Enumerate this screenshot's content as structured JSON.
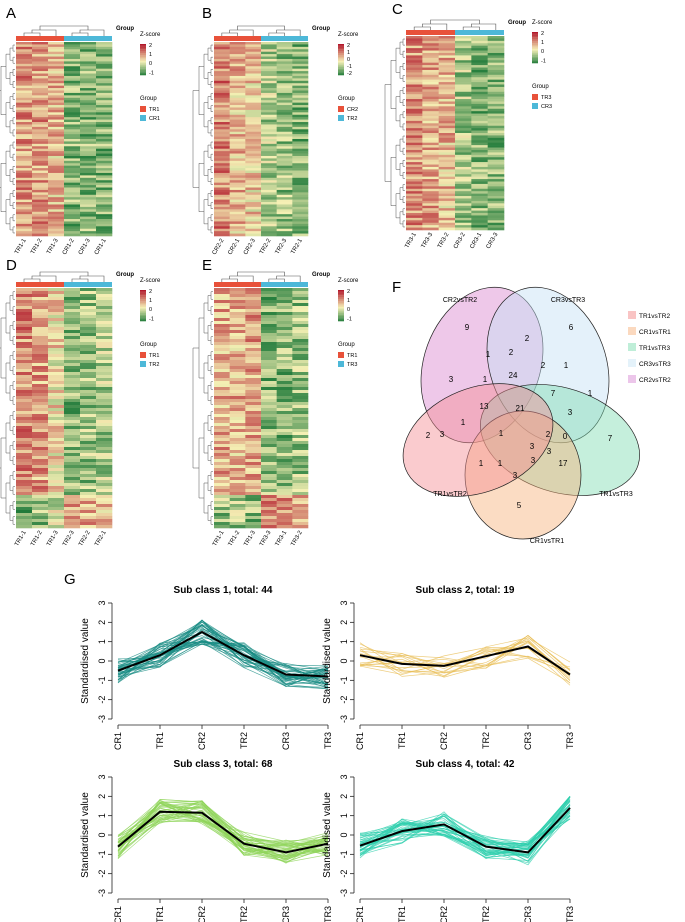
{
  "panels": {
    "A": {
      "letter": "A",
      "groups": [
        "TR1",
        "CR1"
      ],
      "cols": [
        "TR1-1",
        "TR1-2",
        "TR1-3",
        "CR1-2",
        "CR1-3",
        "CR1-1"
      ],
      "scale": [
        "2",
        "1",
        "0",
        "-1"
      ]
    },
    "B": {
      "letter": "B",
      "groups": [
        "CR2",
        "TR2"
      ],
      "cols": [
        "CR2-2",
        "CR2-1",
        "CR2-3",
        "TR2-2",
        "TR2-3",
        "TR2-1"
      ],
      "scale": [
        "2",
        "1",
        "0",
        "-1",
        "-2"
      ]
    },
    "C": {
      "letter": "C",
      "groups": [
        "TR3",
        "CR3"
      ],
      "cols": [
        "TR3-1",
        "TR3-3",
        "TR3-2",
        "CR3-2",
        "CR3-1",
        "CR3-3"
      ],
      "scale": [
        "2",
        "1",
        "0",
        "-1"
      ]
    },
    "D": {
      "letter": "D",
      "groups": [
        "TR1",
        "TR2"
      ],
      "cols": [
        "TR1-1",
        "TR1-2",
        "TR1-3",
        "TR2-3",
        "TR2-2",
        "TR2-1"
      ],
      "scale": [
        "2",
        "1",
        "0",
        "-1"
      ]
    },
    "E": {
      "letter": "E",
      "groups": [
        "TR1",
        "TR3"
      ],
      "cols": [
        "TR1-1",
        "TR1-2",
        "TR1-3",
        "TR3-3",
        "TR3-1",
        "TR3-2"
      ],
      "scale": [
        "2",
        "1",
        "0",
        "-1"
      ]
    }
  },
  "labels": {
    "group": "Group",
    "zscore": "Z-score"
  },
  "colors": {
    "group1": "#e8513a",
    "group2": "#4db8d8",
    "high": "#b2182b",
    "mid": "#f5f0b4",
    "low": "#1b7837"
  },
  "venn": {
    "letter": "F",
    "sets": [
      {
        "name": "CR2vsTR2",
        "color": "#d984cf"
      },
      {
        "name": "CR3vsTR3",
        "color": "#c3e1f3"
      },
      {
        "name": "TR1vsTR3",
        "color": "#7fdbb2"
      },
      {
        "name": "CR1vsTR1",
        "color": "#f7b27a"
      },
      {
        "name": "TR1vsTR2",
        "color": "#f58c93"
      }
    ],
    "legend": [
      "TR1vsTR2",
      "CR1vsTR1",
      "TR1vsTR3",
      "CR3vsTR3",
      "CR2vsTR2"
    ],
    "legend_colors": [
      "#f9c4c4",
      "#fbd9bf",
      "#bfeed8",
      "#e4f2fa",
      "#ecc6ea"
    ],
    "counts": [
      "9",
      "6",
      "7",
      "5",
      "2",
      "2",
      "1",
      "2",
      "24",
      "2",
      "1",
      "3",
      "1",
      "13",
      "21",
      "1",
      "7",
      "1",
      "3",
      "1",
      "3",
      "2",
      "1",
      "3",
      "0",
      "3",
      "1",
      "3",
      "17",
      "3"
    ]
  },
  "clusters": {
    "letter": "G",
    "ylabel": "Standardised value",
    "categories": [
      "CR1",
      "TR1",
      "CR2",
      "TR2",
      "CR3",
      "TR3"
    ],
    "yticks": [
      "3",
      "2",
      "1",
      "0",
      "-1",
      "-2",
      "-3"
    ],
    "panels": [
      {
        "title": "Sub class 1, total: 44",
        "color": "#1a8c84",
        "mean": [
          -0.5,
          0.3,
          1.5,
          0.3,
          -0.7,
          -0.8
        ],
        "n": 44
      },
      {
        "title": "Sub class 2, total: 19",
        "color": "#e8bd55",
        "mean": [
          0.3,
          -0.15,
          -0.25,
          0.25,
          0.75,
          -0.7
        ],
        "n": 19
      },
      {
        "title": "Sub class 3, total: 68",
        "color": "#8fd45a",
        "mean": [
          -0.6,
          1.2,
          1.15,
          -0.45,
          -0.9,
          -0.45
        ],
        "n": 68
      },
      {
        "title": "Sub class 4, total: 42",
        "color": "#2fcfae",
        "mean": [
          -0.55,
          0.2,
          0.55,
          -0.6,
          -0.9,
          1.4
        ],
        "n": 42
      }
    ]
  }
}
